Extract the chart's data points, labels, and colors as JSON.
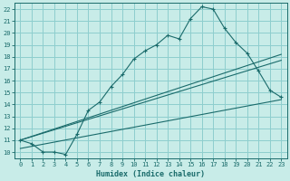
{
  "xlabel": "Humidex (Indice chaleur)",
  "ylabel": "",
  "bg_color": "#c8ece8",
  "grid_color": "#8ecece",
  "line_color": "#1a6b6b",
  "xlim": [
    -0.5,
    23.5
  ],
  "ylim": [
    9.5,
    22.5
  ],
  "xticks": [
    0,
    1,
    2,
    3,
    4,
    5,
    6,
    7,
    8,
    9,
    10,
    11,
    12,
    13,
    14,
    15,
    16,
    17,
    18,
    19,
    20,
    21,
    22,
    23
  ],
  "yticks": [
    10,
    11,
    12,
    13,
    14,
    15,
    16,
    17,
    18,
    19,
    20,
    21,
    22
  ],
  "main_x": [
    0,
    1,
    2,
    3,
    4,
    5,
    6,
    7,
    8,
    9,
    10,
    11,
    12,
    13,
    14,
    15,
    16,
    17,
    18,
    19,
    20,
    21,
    22,
    23
  ],
  "main_y": [
    11.0,
    10.7,
    10.0,
    10.0,
    9.8,
    11.5,
    13.5,
    14.2,
    15.5,
    16.5,
    17.8,
    18.5,
    19.0,
    19.8,
    19.5,
    21.2,
    22.2,
    22.0,
    20.4,
    19.2,
    18.3,
    16.8,
    15.2,
    14.6
  ],
  "trend1_x": [
    0,
    23
  ],
  "trend1_y": [
    11.0,
    18.2
  ],
  "trend2_x": [
    0,
    23
  ],
  "trend2_y": [
    11.0,
    17.7
  ],
  "trend3_x": [
    0,
    23
  ],
  "trend3_y": [
    10.3,
    14.4
  ]
}
